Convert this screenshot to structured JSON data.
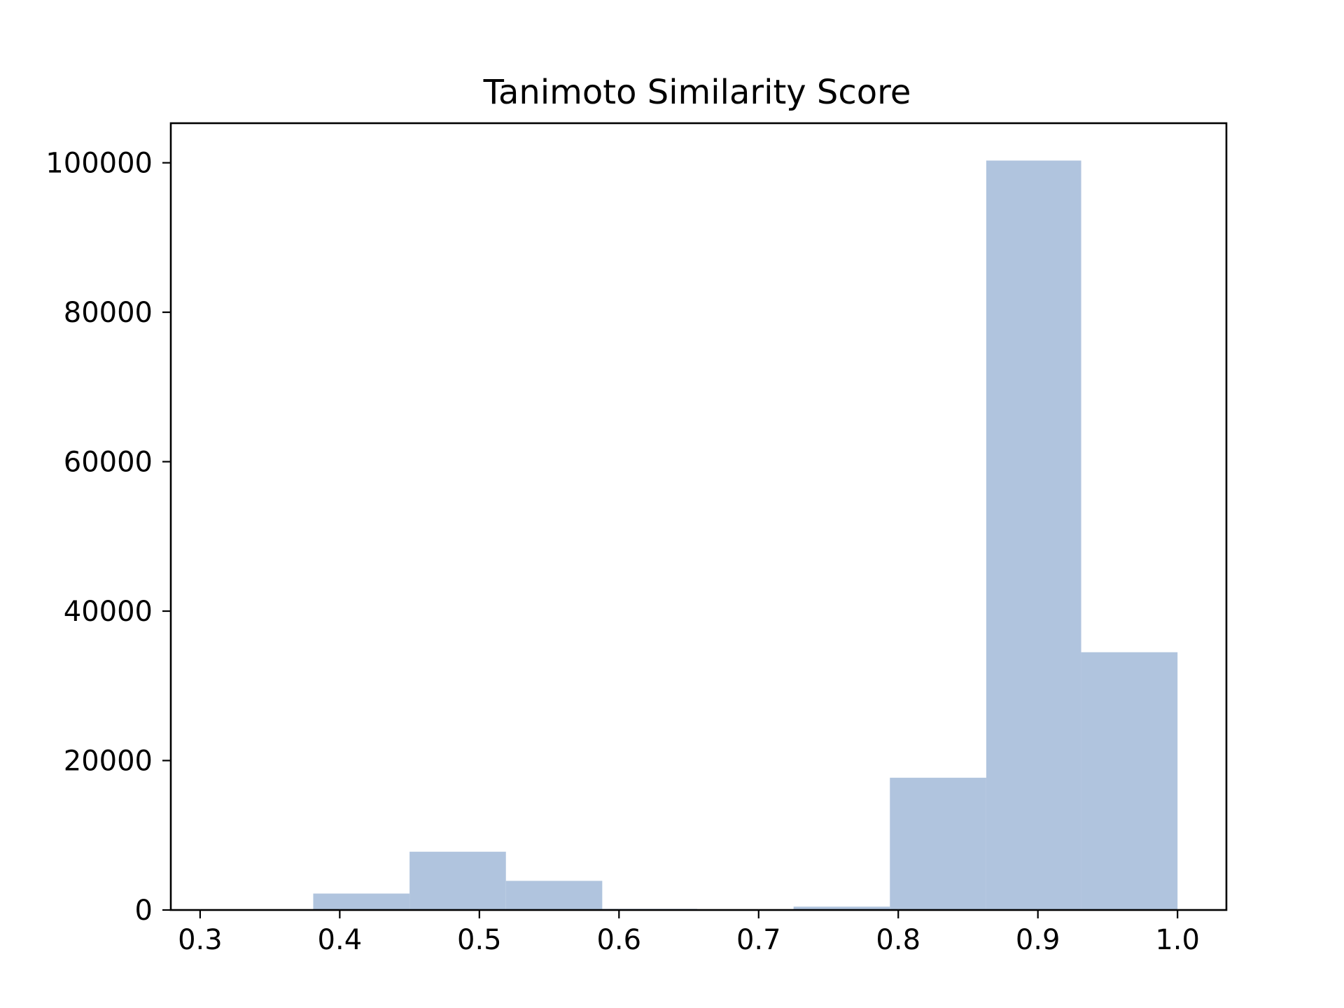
{
  "chart_data": {
    "type": "bar",
    "title": "Tanimoto Similarity Score",
    "xlabel": "",
    "ylabel": "",
    "bar_color": "#b0c4de",
    "axis_color": "#000000",
    "xlim": [
      0.279,
      1.035
    ],
    "ylim": [
      0,
      105300
    ],
    "grid": false,
    "x_ticks": [
      0.3,
      0.4,
      0.5,
      0.6,
      0.7,
      0.8,
      0.9,
      1.0
    ],
    "x_tick_labels": [
      "0.3",
      "0.4",
      "0.5",
      "0.6",
      "0.7",
      "0.8",
      "0.9",
      "1.0"
    ],
    "y_ticks": [
      0,
      20000,
      40000,
      60000,
      80000,
      100000
    ],
    "y_tick_labels": [
      "0",
      "20000",
      "40000",
      "60000",
      "80000",
      "100000"
    ],
    "bins": [
      {
        "x0": 0.3125,
        "x1": 0.381,
        "value": 0
      },
      {
        "x0": 0.381,
        "x1": 0.45,
        "value": 2200
      },
      {
        "x0": 0.45,
        "x1": 0.519,
        "value": 7800
      },
      {
        "x0": 0.519,
        "x1": 0.588,
        "value": 3900
      },
      {
        "x0": 0.588,
        "x1": 0.656,
        "value": 150
      },
      {
        "x0": 0.656,
        "x1": 0.725,
        "value": 0
      },
      {
        "x0": 0.725,
        "x1": 0.794,
        "value": 450
      },
      {
        "x0": 0.794,
        "x1": 0.863,
        "value": 17700
      },
      {
        "x0": 0.863,
        "x1": 0.931,
        "value": 100300
      },
      {
        "x0": 0.931,
        "x1": 1.0,
        "value": 34500
      }
    ]
  }
}
